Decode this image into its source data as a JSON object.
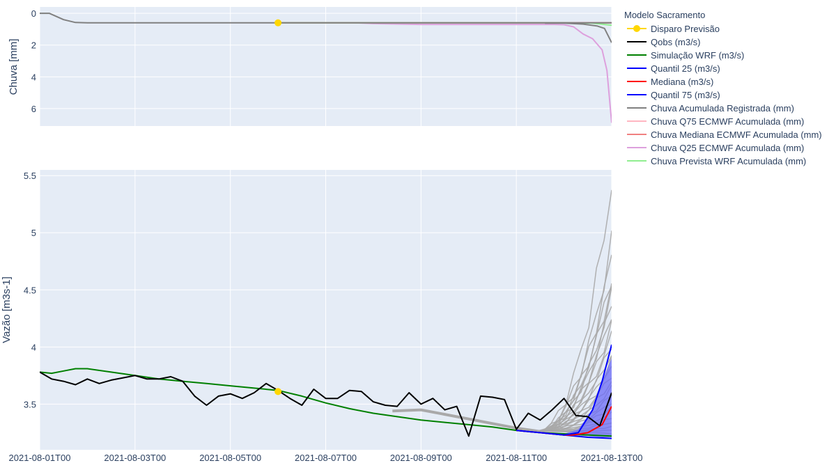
{
  "chart_data": {
    "type": "line",
    "legend": {
      "title": "Modelo Sacramento",
      "placement": "right",
      "items": [
        {
          "label": "Disparo Previsão",
          "color": "#FFD700",
          "marker": true
        },
        {
          "label": "Qobs (m3/s)",
          "color": "#000000"
        },
        {
          "label": "Simulação WRF (m3/s)",
          "color": "#008000"
        },
        {
          "label": "Quantil 25 (m3/s)",
          "color": "#0000FF"
        },
        {
          "label": "Mediana (m3/s)",
          "color": "#FF0000"
        },
        {
          "label": "Quantil 75 (m3/s)",
          "color": "#0000FF"
        },
        {
          "label": "Chuva Acumulada Registrada (mm)",
          "color": "#808080"
        },
        {
          "label": "Chuva Q75 ECMWF Acumulada (mm)",
          "color": "#FFB6C1"
        },
        {
          "label": "Chuva Mediana ECMWF Acumulada (mm)",
          "color": "#F08080"
        },
        {
          "label": "Chuva Q25 ECMWF Acumulada (mm)",
          "color": "#DDA0DD"
        },
        {
          "label": "Chuva Prevista WRF Acumulada (mm)",
          "color": "#90EE90"
        }
      ]
    },
    "xaxis": {
      "range_days": [
        0,
        12
      ],
      "tick_days": [
        0,
        2,
        4,
        6,
        8,
        10,
        12
      ],
      "tick_labels": [
        "2021-08-01T00",
        "2021-08-03T00",
        "2021-08-05T00",
        "2021-08-07T00",
        "2021-08-09T00",
        "2021-08-11T00",
        "2021-08-13T00"
      ]
    },
    "rain_panel": {
      "ylabel": "Chuva [mm]",
      "yrange": [
        7.1,
        -0.4
      ],
      "reversed": true,
      "ticks": [
        0,
        2,
        4,
        6
      ],
      "tick_labels": [
        "0",
        "2",
        "4",
        "6"
      ],
      "grid": true,
      "series": [
        {
          "key": "registrada",
          "color": "#808080",
          "x": [
            0,
            0.2,
            0.5,
            0.75,
            1,
            3,
            5,
            7,
            9,
            11,
            11.5,
            12
          ],
          "y": [
            0,
            0,
            0.4,
            0.58,
            0.6,
            0.6,
            0.6,
            0.6,
            0.6,
            0.6,
            0.6,
            0.6
          ]
        },
        {
          "key": "q75",
          "color": "#FFB6C1",
          "x": [
            5,
            7,
            9,
            11,
            11.5,
            12
          ],
          "y": [
            0.6,
            0.6,
            0.6,
            0.6,
            0.6,
            0.6
          ]
        },
        {
          "key": "mediana",
          "color": "#F08080",
          "x": [
            5,
            7,
            9,
            11,
            11.4,
            11.8,
            12
          ],
          "y": [
            0.6,
            0.6,
            0.6,
            0.6,
            0.6,
            0.6,
            0.6
          ]
        },
        {
          "key": "q25",
          "color": "#DDA0DD",
          "x": [
            5,
            6.6,
            7,
            8,
            9,
            10,
            10.8,
            11,
            11.2,
            11.4,
            11.6,
            11.8,
            11.9,
            12
          ],
          "y": [
            0.6,
            0.6,
            0.65,
            0.7,
            0.7,
            0.7,
            0.7,
            0.72,
            0.85,
            1.3,
            1.6,
            2.3,
            3.6,
            6.9
          ]
        },
        {
          "key": "wrf",
          "color": "#90EE90",
          "x": [
            5,
            7,
            9,
            11,
            11.6,
            12
          ],
          "y": [
            0.6,
            0.6,
            0.6,
            0.6,
            0.62,
            0.75
          ]
        },
        {
          "key": "registrada_top",
          "color": "#808080",
          "x": [
            10.6,
            11,
            11.4,
            11.7,
            11.85,
            12
          ],
          "y": [
            0.62,
            0.62,
            0.68,
            0.8,
            0.95,
            1.85
          ]
        }
      ],
      "trigger": {
        "x": 5.0,
        "y": 0.6
      }
    },
    "flow_panel": {
      "ylabel": "Vazão [m3s-1]",
      "yrange": [
        3.1,
        5.55
      ],
      "ticks": [
        3.5,
        4,
        4.5,
        5,
        5.5
      ],
      "tick_labels": [
        "3.5",
        "4",
        "4.5",
        "5",
        "5.5"
      ],
      "grid": true,
      "series": [
        {
          "key": "qobs",
          "color": "#000000",
          "x": [
            0,
            0.25,
            0.5,
            0.75,
            1,
            1.25,
            1.5,
            1.75,
            2,
            2.25,
            2.5,
            2.75,
            3,
            3.25,
            3.5,
            3.75,
            4,
            4.25,
            4.5,
            4.75,
            5,
            5.25,
            5.5,
            5.75,
            6,
            6.25,
            6.5,
            6.75,
            7,
            7.25,
            7.5,
            7.75,
            8,
            8.25,
            8.5,
            8.75,
            9,
            9.25,
            9.5,
            9.75,
            10,
            10.25,
            10.5,
            10.75,
            11,
            11.25,
            11.5,
            11.75,
            12
          ],
          "y": [
            3.78,
            3.72,
            3.7,
            3.67,
            3.72,
            3.68,
            3.71,
            3.73,
            3.75,
            3.72,
            3.72,
            3.74,
            3.7,
            3.57,
            3.49,
            3.57,
            3.59,
            3.55,
            3.6,
            3.68,
            3.62,
            3.55,
            3.49,
            3.63,
            3.55,
            3.55,
            3.62,
            3.61,
            3.52,
            3.49,
            3.48,
            3.6,
            3.5,
            3.55,
            3.45,
            3.48,
            3.22,
            3.57,
            3.56,
            3.54,
            3.28,
            3.42,
            3.36,
            3.45,
            3.55,
            3.4,
            3.39,
            3.31,
            3.6
          ]
        },
        {
          "key": "sim_wrf",
          "color": "#008000",
          "x": [
            0,
            0.25,
            0.5,
            0.75,
            1,
            1.5,
            2,
            2.5,
            3,
            3.5,
            4,
            4.5,
            5,
            5.5,
            6,
            6.5,
            7,
            7.5,
            8,
            8.5,
            9,
            9.5,
            10,
            10.5,
            11,
            11.5,
            12
          ],
          "y": [
            3.78,
            3.77,
            3.79,
            3.81,
            3.81,
            3.78,
            3.75,
            3.72,
            3.7,
            3.68,
            3.66,
            3.64,
            3.62,
            3.57,
            3.51,
            3.46,
            3.42,
            3.39,
            3.36,
            3.34,
            3.32,
            3.3,
            3.27,
            3.25,
            3.24,
            3.23,
            3.22
          ]
        },
        {
          "key": "q25",
          "color": "#0000FF",
          "x": [
            10,
            10.5,
            11,
            11.5,
            12
          ],
          "y": [
            3.27,
            3.25,
            3.23,
            3.21,
            3.2
          ]
        },
        {
          "key": "mediana",
          "color": "#FF0000",
          "x": [
            10,
            10.5,
            11,
            11.2,
            11.5,
            11.8,
            12
          ],
          "y": [
            3.27,
            3.25,
            3.23,
            3.23,
            3.25,
            3.32,
            3.48
          ]
        },
        {
          "key": "q75",
          "color": "#0000FF",
          "x": [
            10,
            10.5,
            11,
            11.3,
            11.6,
            11.8,
            12
          ],
          "y": [
            3.27,
            3.25,
            3.23,
            3.25,
            3.45,
            3.7,
            4.02
          ]
        }
      ],
      "ensemble_band": {
        "color": "#6B6BF5",
        "x": [
          10.6,
          11,
          11.3,
          11.6,
          11.8,
          12,
          12,
          11.8,
          11.5,
          11,
          10.6
        ],
        "y": [
          3.25,
          3.24,
          3.28,
          3.45,
          3.7,
          3.9,
          3.21,
          3.21,
          3.22,
          3.23,
          3.25
        ]
      },
      "ensemble_members_color": "#A9A9A9",
      "ensemble_members_end": [
        5.43,
        4.92,
        4.79,
        4.62,
        4.55,
        4.45,
        4.38,
        4.3,
        4.2,
        4.1,
        4.02,
        3.95,
        3.88,
        3.82,
        3.76,
        3.7,
        3.64,
        3.58,
        3.52,
        3.47,
        3.42,
        3.38,
        3.34,
        3.3,
        3.27,
        3.24
      ],
      "trigger": {
        "x": 5.0,
        "y": 3.61
      }
    }
  }
}
